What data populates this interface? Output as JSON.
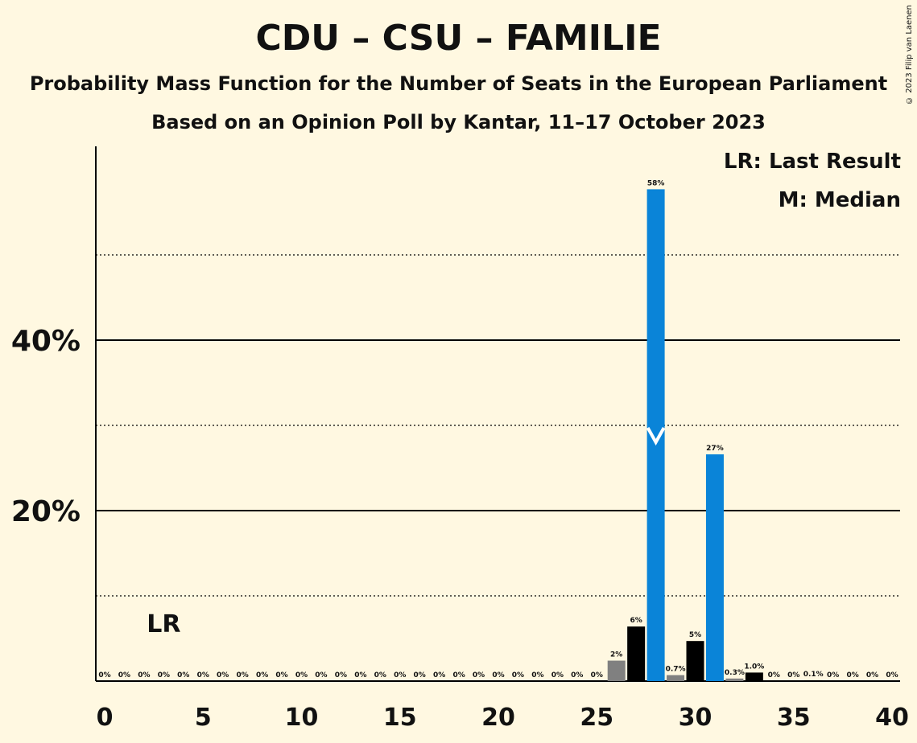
{
  "title": "CDU – CSU – FAMILIE",
  "subtitle": "Probability Mass Function for the Number of Seats in the European Parliament",
  "subtitle2": "Based on an Opinion Poll by Kantar, 11–17 October 2023",
  "copyright": "© 2023 Filip van Laenen",
  "legend": {
    "last_result": "LR: Last Result",
    "median": "M: Median"
  },
  "markers": {
    "last_result_label": "LR",
    "last_result_seat": 3,
    "median_label": "M",
    "median_seat": 28
  },
  "colors": {
    "background": "#FFF8E1",
    "party": "#0A84D8",
    "black": "#000000",
    "grey": "#808080"
  },
  "chart_data": {
    "type": "bar",
    "x": [
      0,
      1,
      2,
      3,
      4,
      5,
      6,
      7,
      8,
      9,
      10,
      11,
      12,
      13,
      14,
      15,
      16,
      17,
      18,
      19,
      20,
      21,
      22,
      23,
      24,
      25,
      26,
      27,
      28,
      29,
      30,
      31,
      32,
      33,
      34,
      35,
      36,
      37,
      38,
      39,
      40
    ],
    "values": [
      0,
      0,
      0,
      0,
      0,
      0,
      0,
      0,
      0,
      0,
      0,
      0,
      0,
      0,
      0,
      0,
      0,
      0,
      0,
      0,
      0,
      0,
      0,
      0,
      0,
      0,
      2.4,
      6.4,
      57.7,
      0.7,
      4.7,
      26.6,
      0.3,
      1.0,
      0,
      0,
      0.1,
      0,
      0,
      0,
      0
    ],
    "data_labels": [
      "0%",
      "0%",
      "0%",
      "0%",
      "0%",
      "0%",
      "0%",
      "0%",
      "0%",
      "0%",
      "0%",
      "0%",
      "0%",
      "0%",
      "0%",
      "0%",
      "0%",
      "0%",
      "0%",
      "0%",
      "0%",
      "0%",
      "0%",
      "0%",
      "0%",
      "0%",
      "2%",
      "6%",
      "58%",
      "0.7%",
      "5%",
      "27%",
      "0.3%",
      "1.0%",
      "0%",
      "0%",
      "0.1%",
      "0%",
      "0%",
      "0%",
      "0%"
    ],
    "bar_colors": [
      "black",
      "black",
      "black",
      "black",
      "black",
      "black",
      "black",
      "black",
      "black",
      "black",
      "black",
      "black",
      "black",
      "black",
      "black",
      "black",
      "black",
      "black",
      "black",
      "black",
      "black",
      "black",
      "black",
      "black",
      "black",
      "black",
      "grey",
      "black",
      "party",
      "grey",
      "black",
      "party",
      "grey",
      "black",
      "black",
      "black",
      "black",
      "black",
      "black",
      "black",
      "black"
    ],
    "x_ticks": [
      "0",
      "5",
      "10",
      "15",
      "20",
      "25",
      "30",
      "35",
      "40"
    ],
    "y_ticks": [
      "20%",
      "40%"
    ],
    "ylim": [
      0,
      62
    ],
    "grid": "solid at 20% and 40%, dotted at 10%, 30% and 50%"
  }
}
